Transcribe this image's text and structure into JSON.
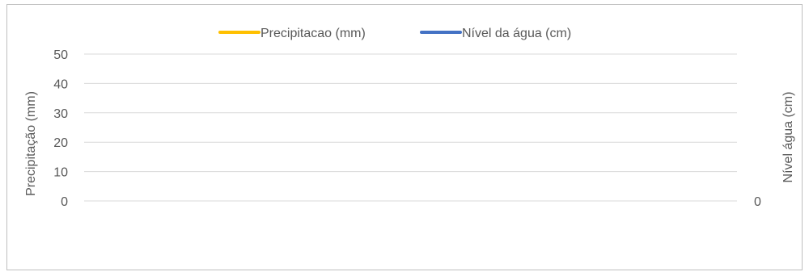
{
  "chart_data": {
    "type": "line",
    "title": "",
    "ylabel": "Precipitação (mm)",
    "y2label": "Nível água (cm)",
    "ylim": [
      0,
      50
    ],
    "y_ticks": [
      "0",
      "10",
      "20",
      "30",
      "40",
      "50"
    ],
    "y2_ticks": [
      "0"
    ],
    "grid": true,
    "legend_position": "top",
    "categories": [],
    "series": [
      {
        "name": "Precipitacao (mm)",
        "color": "#FFC000",
        "axis": "left",
        "values": []
      },
      {
        "name": "Nível da água (cm)",
        "color": "#4472C4",
        "axis": "right",
        "values": []
      }
    ]
  }
}
